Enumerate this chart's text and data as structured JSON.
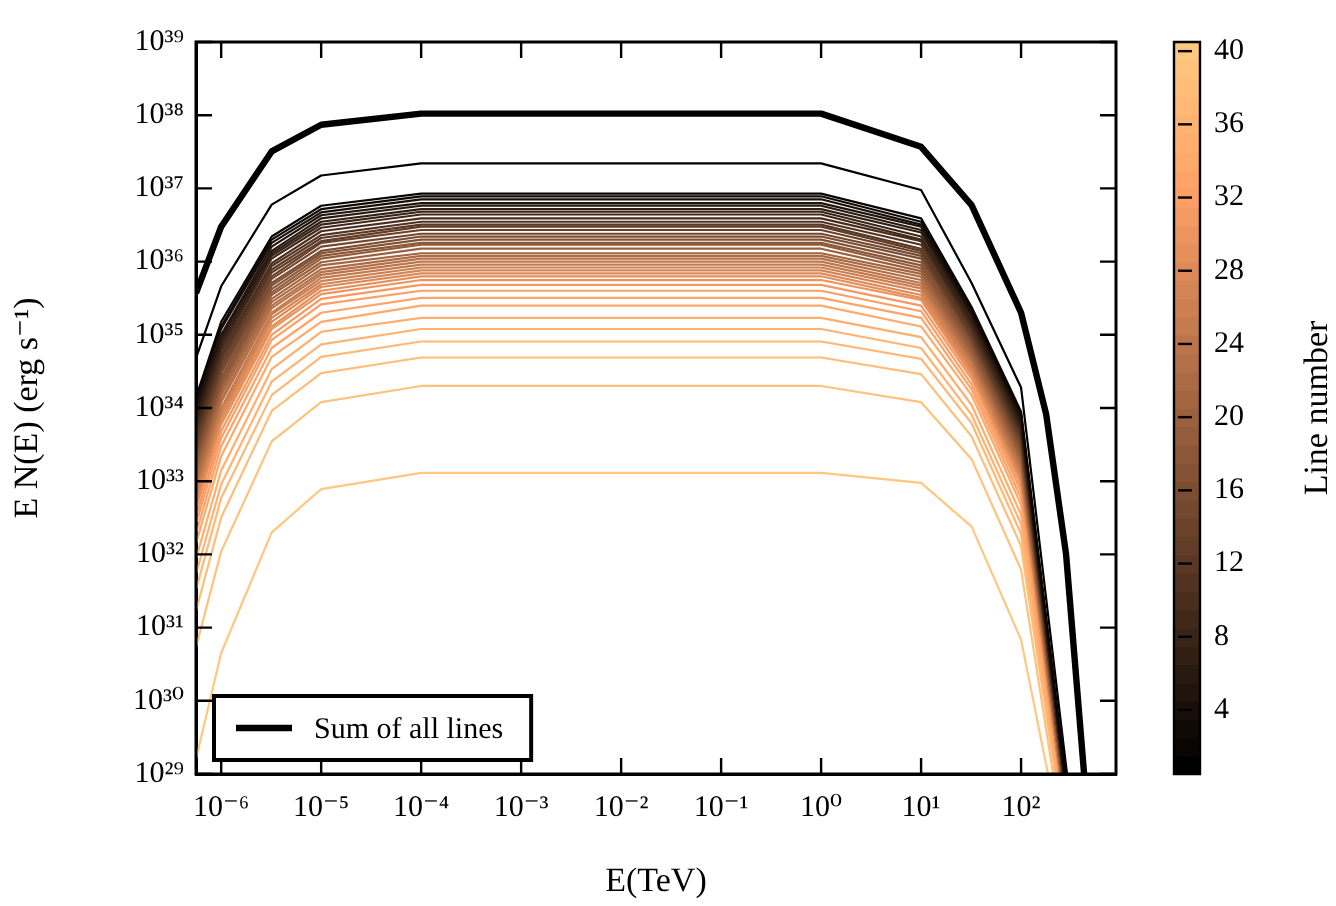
{
  "chart_data": {
    "type": "line",
    "xlabel": "E(TeV)",
    "ylabel": "E N(E) (erg s⁻¹)",
    "clabel": "Line number",
    "log": "xy",
    "legend": "bottom left",
    "grid": false,
    "xlim": [
      5.6e-07,
      890
    ],
    "ylim": [
      1e+29,
      1e+39
    ],
    "xticks": [
      {
        "value": 1e-06,
        "label": "10⁻⁶"
      },
      {
        "value": 1e-05,
        "label": "10⁻⁵"
      },
      {
        "value": 0.0001,
        "label": "10⁻⁴"
      },
      {
        "value": 0.001,
        "label": "10⁻³"
      },
      {
        "value": 0.01,
        "label": "10⁻²"
      },
      {
        "value": 0.1,
        "label": "10⁻¹"
      },
      {
        "value": 1,
        "label": "10⁰"
      },
      {
        "value": 10,
        "label": "10¹"
      },
      {
        "value": 100,
        "label": "10²"
      }
    ],
    "yticks": [
      {
        "value": 1e+29,
        "label": "10²⁹"
      },
      {
        "value": 1e+30,
        "label": "10³⁰"
      },
      {
        "value": 1e+31,
        "label": "10³¹"
      },
      {
        "value": 1e+32,
        "label": "10³²"
      },
      {
        "value": 1e+33,
        "label": "10³³"
      },
      {
        "value": 1e+34,
        "label": "10³⁴"
      },
      {
        "value": 1e+35,
        "label": "10³⁵"
      },
      {
        "value": 1e+36,
        "label": "10³⁶"
      },
      {
        "value": 1e+37,
        "label": "10³⁷"
      },
      {
        "value": 1e+38,
        "label": "10³⁸"
      },
      {
        "value": 1e+39,
        "label": "10³⁹"
      }
    ],
    "clim": [
      0.5,
      40.5
    ],
    "cticks": [
      4,
      8,
      12,
      16,
      20,
      24,
      28,
      32,
      36,
      40
    ],
    "series": [
      {
        "name": "Sum of all lines",
        "color": "#000000",
        "x": [
          5.6e-07,
          1e-06,
          3.2e-06,
          1e-05,
          0.0001,
          1,
          10,
          32,
          100,
          178,
          282,
          427
        ],
        "values": [
          3.7e+35,
          3e+36,
          3.2e+37,
          7.4e+37,
          1.05e+38,
          1.05e+38,
          3.7e+37,
          5.9e+36,
          2e+35,
          8.3e+33,
          1e+32,
          1e+29
        ]
      },
      {
        "color": "#000000",
        "x": [
          5.6e-07,
          1e-06,
          3.2e-06,
          1e-05,
          0.0001,
          1,
          10,
          32,
          100,
          288
        ],
        "values": [
          4.8e+34,
          4.6e+35,
          6e+36,
          1.5e+37,
          2.2e+37,
          2.2e+37,
          9.5e+36,
          5.1e+35,
          1.9e+34,
          1e+29
        ]
      },
      {
        "color": "#080503",
        "x": [
          5.6e-07,
          1e-06,
          3.2e-06,
          1e-05,
          0.0001,
          1,
          10,
          32,
          100,
          275
        ],
        "values": [
          1.4e+34,
          1.5e+35,
          2.2e+36,
          5.8e+36,
          8.5e+36,
          8.5e+36,
          3.9e+36,
          2.4e+35,
          8.9e+33,
          1e+29
        ]
      },
      {
        "color": "#100a07",
        "x": [
          5.6e-07,
          1e-06,
          3.2e-06,
          1e-05,
          0.0001,
          1,
          10,
          32,
          100,
          275
        ],
        "values": [
          1.3e+34,
          1.3e+35,
          2e+36,
          5.2e+36,
          7.8e+36,
          7.8e+36,
          3.5e+36,
          2.2e+35,
          8.3e+33,
          1e+29
        ]
      },
      {
        "color": "#180f0a",
        "x": [
          5.6e-07,
          1e-06,
          3.2e-06,
          1e-05,
          0.0001,
          1,
          10,
          32,
          100,
          275
        ],
        "values": [
          1.1e+34,
          1.2e+35,
          1.8e+36,
          4.7e+36,
          7.1e+36,
          7.1e+36,
          3.2e+36,
          2e+35,
          7.6e+33,
          1e+29
        ]
      },
      {
        "color": "#21140d",
        "x": [
          5.6e-07,
          1e-06,
          3.2e-06,
          1e-05,
          0.0001,
          1,
          10,
          32,
          100,
          269
        ],
        "values": [
          9.8e+33,
          1e+35,
          1.6e+36,
          4.3e+36,
          6.3e+36,
          6.3e+36,
          3e+36,
          1.9e+35,
          7.1e+33,
          1e+29
        ]
      },
      {
        "color": "#291a10",
        "x": [
          5.6e-07,
          1e-06,
          3.2e-06,
          1e-05,
          0.0001,
          1,
          10,
          32,
          100,
          269
        ],
        "values": [
          8.5e+33,
          9.3e+34,
          1.4e+36,
          3.9e+36,
          5.8e+36,
          5.8e+36,
          2.7e+36,
          1.8e+35,
          6.5e+33,
          1e+29
        ]
      },
      {
        "color": "#311f14",
        "x": [
          5.6e-07,
          1e-06,
          3.2e-06,
          1e-05,
          0.0001,
          1,
          10,
          32,
          100,
          269
        ],
        "values": [
          7.6e+33,
          8.3e+34,
          1.3e+36,
          3.5e+36,
          5.2e+36,
          5.2e+36,
          2.5e+36,
          1.6e+35,
          6e+33,
          1e+29
        ]
      },
      {
        "color": "#392417",
        "x": [
          5.6e-07,
          1e-06,
          3.2e-06,
          1e-05,
          0.0001,
          1,
          10,
          32,
          100,
          269
        ],
        "values": [
          6.6e+33,
          7.4e+34,
          1.2e+36,
          3.2e+36,
          4.8e+36,
          4.8e+36,
          2.2e+36,
          1.5e+35,
          5.5e+33,
          1e+29
        ]
      },
      {
        "color": "#41291a",
        "x": [
          5.6e-07,
          1e-06,
          3.2e-06,
          1e-05,
          0.0001,
          1,
          10,
          32,
          100,
          269
        ],
        "values": [
          5.9e+33,
          6.6e+34,
          1.1e+36,
          2.9e+36,
          4.4e+36,
          4.4e+36,
          2e+36,
          1.4e+35,
          5.1e+33,
          1e+29
        ]
      },
      {
        "color": "#4a2e1d",
        "x": [
          5.6e-07,
          1e-06,
          3.2e-06,
          1e-05,
          0.0001,
          1,
          10,
          32,
          100,
          263
        ],
        "values": [
          5.1e+33,
          5.9e+34,
          9.5e+35,
          2.6e+36,
          3.9e+36,
          3.9e+36,
          1.9e+36,
          1.3e+35,
          4.7e+33,
          1e+29
        ]
      },
      {
        "color": "#523321",
        "x": [
          5.6e-07,
          1e-06,
          3.2e-06,
          1e-05,
          0.0001,
          1,
          10,
          32,
          100,
          263
        ],
        "values": [
          4.6e+33,
          5.2e+34,
          8.7e+35,
          2.3e+36,
          3.5e+36,
          3.5e+36,
          1.7e+36,
          1.2e+35,
          4.4e+33,
          1e+29
        ]
      },
      {
        "color": "#5a3824",
        "x": [
          5.6e-07,
          1e-06,
          3.2e-06,
          1e-05,
          0.0001,
          1,
          10,
          32,
          100,
          263
        ],
        "values": [
          4e+33,
          4.7e+34,
          7.8e+35,
          2.1e+36,
          3.2e+36,
          3.2e+36,
          1.5e+36,
          1.1e+35,
          4.1e+33,
          1e+29
        ]
      },
      {
        "color": "#623d27",
        "x": [
          5.6e-07,
          1e-06,
          3.2e-06,
          1e-05,
          0.0001,
          1,
          10,
          32,
          100,
          263
        ],
        "values": [
          3.5e+33,
          4.2e+34,
          7.1e+35,
          1.9e+36,
          3e+36,
          3e+36,
          1.4e+36,
          1e+35,
          3.7e+33,
          1e+29
        ]
      },
      {
        "color": "#6a422a",
        "x": [
          5.6e-07,
          1e-06,
          3.2e-06,
          1e-05,
          0.0001,
          1,
          10,
          32,
          100,
          263
        ],
        "values": [
          3.1e+33,
          3.7e+34,
          6.3e+35,
          1.8e+36,
          2.7e+36,
          2.7e+36,
          1.3e+36,
          9.5e+34,
          3.5e+33,
          1e+29
        ]
      },
      {
        "color": "#72482e",
        "x": [
          5.6e-07,
          1e-06,
          3.2e-06,
          1e-05,
          0.0001,
          1,
          10,
          32,
          100,
          263
        ],
        "values": [
          2.8e+33,
          3.3e+34,
          5.8e+35,
          1.6e+36,
          2.4e+36,
          2.4e+36,
          1.2e+36,
          8.9e+34,
          3.2e+33,
          1e+29
        ]
      },
      {
        "color": "#7b4d31",
        "x": [
          5.6e-07,
          1e-06,
          3.2e-06,
          1e-05,
          0.0001,
          1,
          10,
          32,
          100,
          257
        ],
        "values": [
          2.4e+33,
          3e+34,
          5.1e+35,
          1.4e+36,
          2.2e+36,
          2.2e+36,
          1.1e+36,
          8.3e+34,
          3e+33,
          1e+29
        ]
      },
      {
        "color": "#835234",
        "x": [
          5.6e-07,
          1e-06,
          3.2e-06,
          1e-05,
          0.0001,
          1,
          10,
          32,
          100,
          257
        ],
        "values": [
          2.1e+33,
          2.6e+34,
          4.7e+35,
          1.3e+36,
          2e+36,
          2e+36,
          9.8e+35,
          7.6e+34,
          2.7e+33,
          1e+29
        ]
      },
      {
        "color": "#8b5737",
        "x": [
          5.6e-07,
          1e-06,
          3.2e-06,
          1e-05,
          0.0001,
          1,
          10,
          32,
          100,
          257
        ],
        "values": [
          1.9e+33,
          2.3e+34,
          4.2e+35,
          1.2e+36,
          1.8e+36,
          1.8e+36,
          8.9e+35,
          7.1e+34,
          2.5e+33,
          1e+29
        ]
      },
      {
        "color": "#935c3b",
        "x": [
          5.6e-07,
          1e-06,
          3.2e-06,
          1e-05,
          0.0001,
          1,
          10,
          32,
          100,
          257
        ],
        "values": [
          1.7e+33,
          2.1e+34,
          3.8e+35,
          1.1e+36,
          1.7e+36,
          1.7e+36,
          8.1e+35,
          6.6e+34,
          2.3e+33,
          1e+29
        ]
      },
      {
        "color": "#9b613e",
        "x": [
          5.6e-07,
          1e-06,
          3.2e-06,
          1e-05,
          0.0001,
          1,
          10,
          32,
          100,
          257
        ],
        "values": [
          1.5e+33,
          1.9e+34,
          3.5e+35,
          9.8e+35,
          1.5e+36,
          1.5e+36,
          7.4e+35,
          6e+34,
          2.1e+33,
          1e+29
        ]
      },
      {
        "color": "#a36641",
        "x": [
          5.6e-07,
          1e-06,
          3.2e-06,
          1e-05,
          0.0001,
          1,
          10,
          32,
          100,
          251
        ],
        "values": [
          1.3e+33,
          1.7e+34,
          3.1e+35,
          8.9e+35,
          1.3e+36,
          1.3e+36,
          6.8e+35,
          5.6e+34,
          2e+33,
          1e+29
        ]
      },
      {
        "color": "#ac6b44",
        "x": [
          5.6e-07,
          1e-06,
          3.2e-06,
          1e-05,
          0.0001,
          1,
          10,
          32,
          100,
          251
        ],
        "values": [
          1.1e+33,
          1.5e+34,
          2.8e+35,
          7.9e+35,
          1.2e+36,
          1.2e+36,
          6.2e+35,
          5.2e+34,
          1.8e+33,
          1e+29
        ]
      },
      {
        "color": "#b47048",
        "x": [
          5.6e-07,
          1e-06,
          3.2e-06,
          1e-05,
          0.0001,
          1,
          10,
          32,
          100,
          251
        ],
        "values": [
          1e+33,
          1.3e+34,
          2.5e+35,
          7.2e+35,
          1.1e+36,
          1.1e+36,
          5.6e+35,
          4.8e+34,
          1.7e+33,
          1e+29
        ]
      },
      {
        "color": "#bc754b",
        "x": [
          5.6e-07,
          1e-06,
          3.2e-06,
          1e-05,
          0.0001,
          1,
          10,
          32,
          100,
          251
        ],
        "values": [
          8.9e+32,
          1.2e+34,
          2.3e+35,
          6.6e+35,
          1e+36,
          1e+36,
          5.1e+35,
          4.5e+34,
          1.5e+33,
          1e+29
        ]
      },
      {
        "color": "#c47b4e",
        "x": [
          5.6e-07,
          1e-06,
          3.2e-06,
          1e-05,
          0.0001,
          1,
          10,
          32,
          100,
          251
        ],
        "values": [
          7.8e+32,
          1e+34,
          2e+35,
          6e+35,
          9.1e+35,
          9.1e+35,
          4.7e+35,
          4.2e+34,
          1.4e+33,
          1e+29
        ]
      },
      {
        "color": "#cc8051",
        "x": [
          5.6e-07,
          1e-06,
          3.2e-06,
          1e-05,
          0.0001,
          1,
          10,
          32,
          100,
          245
        ],
        "values": [
          6.9e+32,
          9.3e+33,
          1.9e+35,
          5.4e+35,
          8.3e+35,
          8.3e+35,
          4.3e+35,
          3.8e+34,
          1.3e+33,
          1e+29
        ]
      },
      {
        "color": "#d48555",
        "x": [
          5.6e-07,
          1e-06,
          3.2e-06,
          1e-05,
          0.0001,
          1,
          10,
          32,
          100,
          245
        ],
        "values": [
          6e+32,
          8.3e+33,
          1.7e+35,
          4.9e+35,
          7.6e+35,
          7.6e+35,
          3.9e+35,
          3.5e+34,
          1.2e+33,
          1e+29
        ]
      },
      {
        "color": "#dd8a58",
        "x": [
          5.6e-07,
          1e-06,
          3.2e-06,
          1e-05,
          0.0001,
          1,
          10,
          32,
          100,
          245
        ],
        "values": [
          5.4e+32,
          7.4e+33,
          1.5e+35,
          4.5e+35,
          6.9e+35,
          6.9e+35,
          3.5e+35,
          3.3e+34,
          1.1e+33,
          1e+29
        ]
      },
      {
        "color": "#e58f5b",
        "x": [
          5.6e-07,
          1e-06,
          3.2e-06,
          1e-05,
          0.0001,
          1,
          10,
          32,
          100,
          245
        ],
        "values": [
          4.7e+32,
          6.6e+33,
          1.3e+35,
          4e+35,
          6.3e+35,
          6.3e+35,
          3.2e+35,
          3e+34,
          1e+33,
          1e+29
        ]
      },
      {
        "color": "#ed945e",
        "x": [
          5.6e-07,
          1e-06,
          3.2e-06,
          1e-05,
          0.0001,
          1,
          10,
          32,
          100,
          245
        ],
        "values": [
          4.2e+32,
          5.9e+33,
          1.2e+35,
          3.6e+35,
          5.6e+35,
          5.6e+35,
          3e+35,
          2.8e+34,
          9.8e+32,
          1e+29
        ]
      },
      {
        "color": "#f59962",
        "x": [
          5.6e-07,
          1e-06,
          3.2e-06,
          1e-05,
          0.0001,
          1,
          10,
          32,
          100,
          240
        ],
        "values": [
          3.3e+32,
          4.8e+33,
          1e+35,
          3.1e+35,
          4.8e+35,
          4.8e+35,
          2.5e+35,
          2.5e+34,
          8.3e+32,
          1e+29
        ]
      },
      {
        "color": "#fd9e65",
        "x": [
          5.6e-07,
          1e-06,
          3.2e-06,
          1e-05,
          0.0001,
          1,
          10,
          32,
          100,
          240
        ],
        "values": [
          2.6e+32,
          3.9e+33,
          8.5e+34,
          2.6e+35,
          4e+35,
          4e+35,
          2.1e+35,
          2.1e+34,
          7.2e+32,
          1e+29
        ]
      },
      {
        "color": "#ffa368",
        "x": [
          5.6e-07,
          1e-06,
          3.2e-06,
          1e-05,
          0.0001,
          1,
          10,
          32,
          100,
          240
        ],
        "values": [
          1.9e+32,
          3e+33,
          6.6e+34,
          2e+35,
          3.2e+35,
          3.2e+35,
          1.7e+35,
          1.8e+34,
          5.9e+32,
          1e+29
        ]
      },
      {
        "color": "#ffa96b",
        "x": [
          5.6e-07,
          1e-06,
          3.2e-06,
          1e-05,
          0.0001,
          1,
          10,
          32,
          100,
          234
        ],
        "values": [
          1.4e+32,
          2.2e+33,
          5e+34,
          1.5e+35,
          2.5e+35,
          2.5e+35,
          1.3e+35,
          1.5e+34,
          4.8e+32,
          1e+29
        ]
      },
      {
        "color": "#ffae6f",
        "x": [
          5.6e-07,
          1e-06,
          3.2e-06,
          1e-05,
          0.0001,
          1,
          10,
          32,
          100,
          229
        ],
        "values": [
          8.7e+31,
          1.4e+33,
          3.4e+34,
          1.1e+35,
          1.7e+35,
          1.7e+35,
          9.3e+34,
          1.1e+34,
          3.5e+32,
          1e+29
        ]
      },
      {
        "color": "#ffb372",
        "x": [
          5.6e-07,
          1e-06,
          3.2e-06,
          1e-05,
          0.0001,
          1,
          10,
          32,
          100,
          229
        ],
        "values": [
          5.4e+31,
          9.1e+32,
          2.3e+34,
          7.4e+34,
          1.2e+35,
          1.2e+35,
          6.6e+34,
          8.1e+33,
          2.6e+32,
          1e+29
        ]
      },
      {
        "color": "#ffb875",
        "x": [
          5.6e-07,
          1e-06,
          3.2e-06,
          1e-05,
          0.0001,
          1,
          10,
          32,
          100,
          224
        ],
        "values": [
          3.3e+31,
          5.9e+32,
          1.5e+34,
          5e+34,
          8.1e+34,
          8.1e+34,
          4.7e+34,
          6.2e+33,
          1.9e+32,
          1e+29
        ]
      },
      {
        "color": "#ffbd78",
        "x": [
          5.6e-07,
          1e-06,
          3.2e-06,
          1e-05,
          0.0001,
          1,
          10,
          32,
          100,
          219
        ],
        "values": [
          1.7e+31,
          3.2e+32,
          9.1e+33,
          3e+34,
          4.9e+34,
          4.9e+34,
          2.9e+34,
          4.1e+33,
          1.3e+32,
          1e+29
        ]
      },
      {
        "color": "#ffc27c",
        "x": [
          5.6e-07,
          1e-06,
          3.2e-06,
          1e-05,
          0.0001,
          1,
          10,
          32,
          100,
          209
        ],
        "values": [
          5.4e+30,
          1.1e+32,
          3.5e+33,
          1.2e+34,
          2e+34,
          2e+34,
          1.2e+34,
          2e+33,
          6.2e+31,
          1e+29
        ]
      },
      {
        "color": "#ffc77f",
        "x": [
          5.6e-07,
          1e-06,
          3.2e-06,
          1e-05,
          0.0001,
          1,
          10,
          32,
          100,
          186
        ],
        "values": [
          1.6e+29,
          4.5e+30,
          2e+32,
          7.8e+32,
          1.3e+33,
          1.3e+33,
          9.5e+32,
          2.4e+32,
          6.8e+30,
          1e+29
        ]
      }
    ]
  }
}
